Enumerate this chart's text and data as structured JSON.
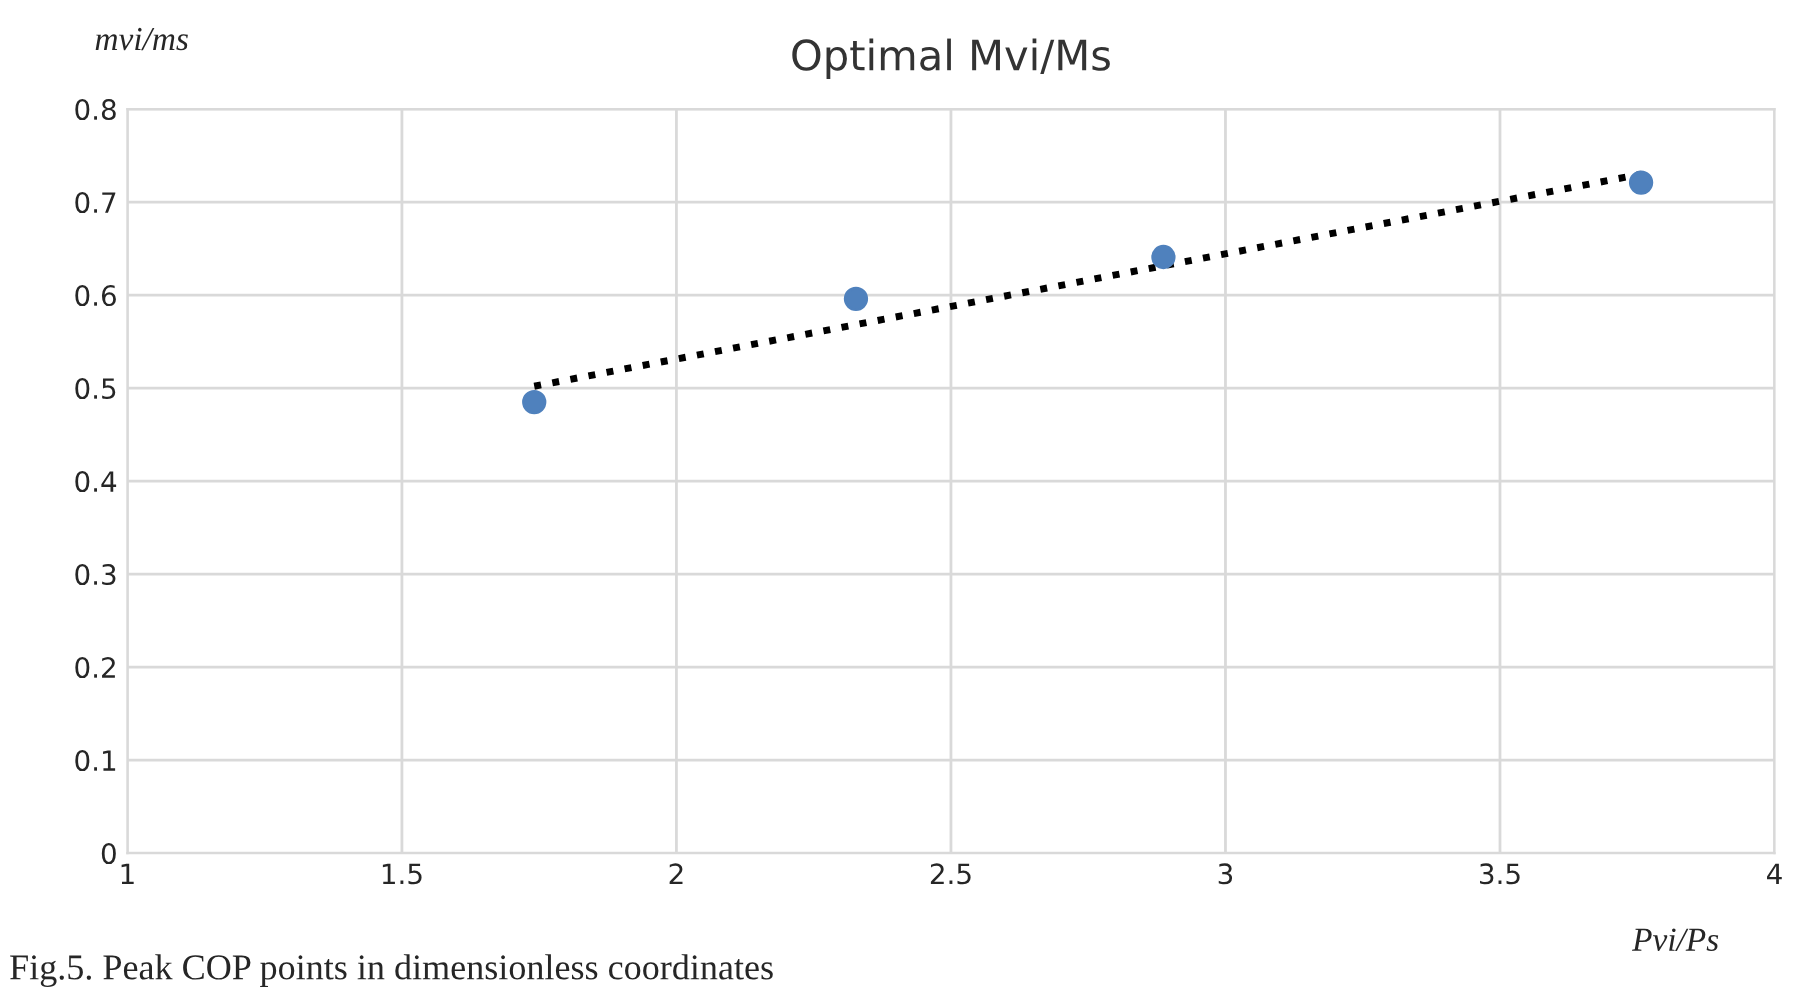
{
  "chart_data": {
    "type": "scatter",
    "title": "Optimal Mvi/Ms",
    "xlabel": "Pvi/Ps",
    "ylabel": "mvi/ms",
    "annotations": [
      "Fig.5. Peak COP points in dimensionless coordinates"
    ],
    "series": [
      {
        "color": "#4f81bd",
        "x": [
          1.741,
          2.327,
          2.887,
          3.757
        ],
        "values": [
          0.485,
          0.596,
          0.641,
          0.721
        ],
        "marker": "circle"
      },
      {
        "type": "line",
        "color": "#000000",
        "x": [
          1.741,
          3.757
        ],
        "values": [
          0.502,
          0.73
        ],
        "line_style": "dotted",
        "marker": "none"
      }
    ],
    "xlim": [
      1,
      4
    ],
    "xticks": [
      1,
      1.5,
      2,
      2.5,
      3,
      3.5,
      4
    ],
    "ylim": [
      0,
      0.8
    ],
    "yticks": [
      0,
      0.1,
      0.2,
      0.3,
      0.4,
      0.5,
      0.6,
      0.7,
      0.8
    ],
    "grid": true,
    "legend": false
  }
}
